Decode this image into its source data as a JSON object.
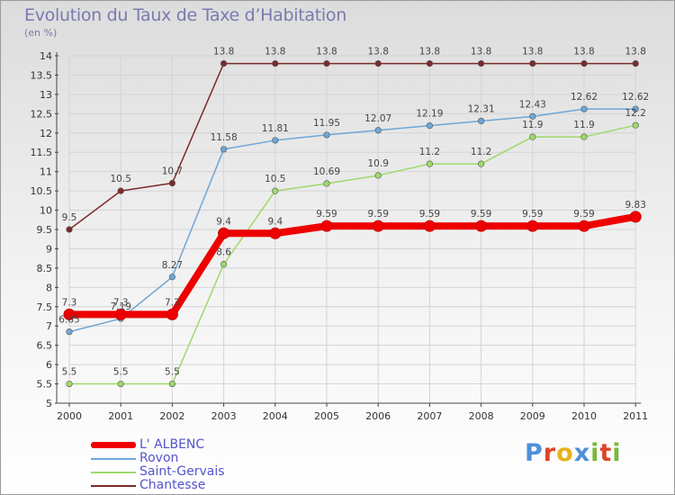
{
  "header": {
    "title": "Evolution du Taux de Taxe d’Habitation",
    "unit": "(en %)"
  },
  "chart_data": {
    "type": "line",
    "title": "Evolution du Taux de Taxe d’Habitation",
    "subtitle": "(en %)",
    "xlabel": "",
    "ylabel": "",
    "categories": [
      "2000",
      "2001",
      "2002",
      "2003",
      "2004",
      "2005",
      "2006",
      "2007",
      "2008",
      "2009",
      "2010",
      "2011"
    ],
    "ylim": [
      5,
      14
    ],
    "ytick_step": 0.5,
    "yticks": [
      "5",
      "5.5",
      "6",
      "6.5",
      "7",
      "7.5",
      "8",
      "8.5",
      "9",
      "9.5",
      "10",
      "10.5",
      "11",
      "11.5",
      "12",
      "12.5",
      "13",
      "13.5",
      "14"
    ],
    "grid": true,
    "legend_position": "bottom-left",
    "series": [
      {
        "name": "Chantesse",
        "color": "#7b2a2a",
        "values": [
          9.5,
          10.5,
          10.7,
          13.8,
          13.8,
          13.8,
          13.8,
          13.8,
          13.8,
          13.8,
          13.8,
          13.8
        ],
        "labels": [
          "9.5",
          "10.5",
          "10.7",
          "13.8",
          "13.8",
          "13.8",
          "13.8",
          "13.8",
          "13.8",
          "13.8",
          "13.8",
          "13.8"
        ]
      },
      {
        "name": "Rovon",
        "color": "#6fa6d6",
        "values": [
          6.85,
          7.19,
          8.27,
          11.58,
          11.81,
          11.95,
          12.07,
          12.19,
          12.31,
          12.43,
          12.62,
          12.62
        ],
        "labels": [
          "6.85",
          "7.19",
          "8.27",
          "11.58",
          "11.81",
          "11.95",
          "12.07",
          "12.19",
          "12.31",
          "12.43",
          "12.62",
          "12.62"
        ]
      },
      {
        "name": "Saint-Gervais",
        "color": "#9ed96a",
        "values": [
          5.5,
          5.5,
          5.5,
          8.6,
          10.5,
          10.69,
          10.9,
          11.2,
          11.2,
          11.9,
          11.9,
          12.2
        ],
        "labels": [
          "5.5",
          "5.5",
          "5.5",
          "8.6",
          "10.5",
          "10.69",
          "10.9",
          "11.2",
          "11.2",
          "11.9",
          "11.9",
          "12.2"
        ]
      },
      {
        "name": "L' ALBENC",
        "color": "#ee0000",
        "values": [
          7.3,
          7.3,
          7.3,
          9.4,
          9.4,
          9.59,
          9.59,
          9.59,
          9.59,
          9.59,
          9.59,
          9.83
        ],
        "labels": [
          "7.3",
          "7.3",
          "7.3",
          "9.4",
          "9.4",
          "9.59",
          "9.59",
          "9.59",
          "9.59",
          "9.59",
          "9.59",
          "9.83"
        ]
      }
    ]
  },
  "legend": {
    "items": [
      {
        "label": "L' ALBENC",
        "color": "#ee0000"
      },
      {
        "label": "Rovon",
        "color": "#6fa6d6"
      },
      {
        "label": "Saint-Gervais",
        "color": "#9ed96a"
      },
      {
        "label": "Chantesse",
        "color": "#7b2a2a"
      }
    ]
  },
  "logo": {
    "text": "Proxiti",
    "letters": [
      "P",
      "r",
      "o",
      "x",
      "i",
      "t",
      "i"
    ],
    "colors": [
      "#4f8fd8",
      "#e0452a",
      "#e8b21e",
      "#4f8fd8",
      "#7ab83a",
      "#e0452a",
      "#7ab83a"
    ]
  }
}
